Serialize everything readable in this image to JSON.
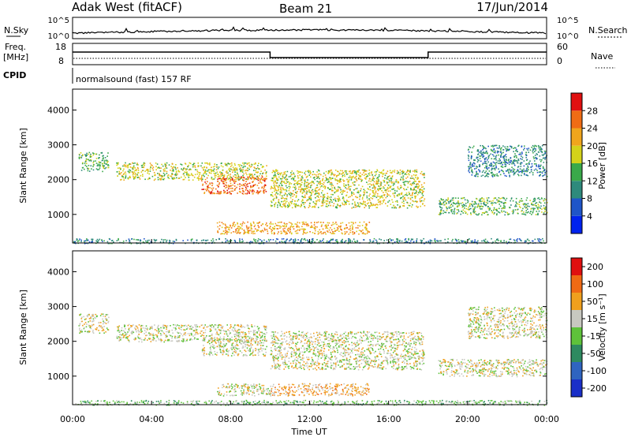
{
  "header": {
    "station": "Adak West (fitACF)",
    "beam": "Beam 21",
    "date": "17/Jun/2014"
  },
  "top_panels": {
    "nsky_label": "N.Sky",
    "nsearch_label": "N.Search",
    "count_ticks": [
      "10^5",
      "10^0"
    ],
    "freq_label_line1": "Freq.",
    "freq_label_line2": "[MHz]",
    "freq_ticks": [
      "18",
      "8"
    ],
    "nave_label": "Nave",
    "nave_ticks": [
      "60",
      "0"
    ],
    "cpid_label": "CPID",
    "cpid_text": "normalsound (fast) 157 RF"
  },
  "chart_data": [
    {
      "type": "heatmap",
      "name": "power",
      "ylabel": "Slant Range [km]",
      "yticks": [
        1000,
        2000,
        3000,
        4000
      ],
      "ylim": [
        180,
        4600
      ],
      "xlim": [
        0,
        24
      ],
      "colorbar": {
        "label": "Power [dB]",
        "ticks": [
          "4",
          "8",
          "12",
          "16",
          "20",
          "24",
          "28"
        ],
        "colors": [
          "#0022ee",
          "#1f55c8",
          "#2e8a7c",
          "#3aa94a",
          "#d4d21a",
          "#f0a51c",
          "#f06c14",
          "#e01010"
        ]
      },
      "bands": [
        {
          "t0": 0.3,
          "t1": 1.8,
          "r0": 2250,
          "r1": 2800,
          "level": 3
        },
        {
          "t0": 2.2,
          "t1": 9.8,
          "r0": 2000,
          "r1": 2500,
          "level": 4
        },
        {
          "t0": 6.5,
          "t1": 9.8,
          "r0": 1600,
          "r1": 2100,
          "level": 6
        },
        {
          "t0": 10.0,
          "t1": 17.8,
          "r0": 1200,
          "r1": 2300,
          "level": 4
        },
        {
          "t0": 7.3,
          "t1": 15.0,
          "r0": 450,
          "r1": 800,
          "level": 5
        },
        {
          "t0": 18.5,
          "t1": 24.0,
          "r0": 1000,
          "r1": 1500,
          "level": 3
        },
        {
          "t0": 20.0,
          "t1": 24.0,
          "r0": 2100,
          "r1": 3000,
          "level": 2
        },
        {
          "t0": 0.0,
          "t1": 24.0,
          "r0": 180,
          "r1": 320,
          "level": 2
        }
      ]
    },
    {
      "type": "heatmap",
      "name": "velocity",
      "ylabel": "Slant Range [km]",
      "yticks": [
        1000,
        2000,
        3000,
        4000
      ],
      "ylim": [
        180,
        4600
      ],
      "xlim": [
        0,
        24
      ],
      "xlabel": "Time UT",
      "xticks": [
        "00:00",
        "04:00",
        "08:00",
        "12:00",
        "16:00",
        "20:00",
        "00:00"
      ],
      "colorbar": {
        "label": "Velocity [m s⁻¹]",
        "ticks": [
          "200",
          "100",
          "50",
          "15",
          "-15",
          "-50",
          "-100",
          "-200"
        ],
        "colors": [
          "#1a2fc8",
          "#2f64c0",
          "#2e8a60",
          "#5ec23a",
          "#c8c8c0",
          "#f0a01e",
          "#f06a14",
          "#e01010"
        ]
      },
      "bands": [
        {
          "t0": 0.3,
          "t1": 1.8,
          "r0": 2250,
          "r1": 2800,
          "level": 4
        },
        {
          "t0": 2.2,
          "t1": 9.8,
          "r0": 2000,
          "r1": 2500,
          "level": 4
        },
        {
          "t0": 6.5,
          "t1": 9.8,
          "r0": 1600,
          "r1": 2100,
          "level": 4
        },
        {
          "t0": 10.0,
          "t1": 17.8,
          "r0": 1200,
          "r1": 2300,
          "level": 4
        },
        {
          "t0": 7.3,
          "t1": 10.0,
          "r0": 450,
          "r1": 800,
          "level": 4
        },
        {
          "t0": 10.0,
          "t1": 15.0,
          "r0": 450,
          "r1": 800,
          "level": 5
        },
        {
          "t0": 18.5,
          "t1": 24.0,
          "r0": 1000,
          "r1": 1500,
          "level": 4
        },
        {
          "t0": 20.0,
          "t1": 24.0,
          "r0": 2100,
          "r1": 3000,
          "level": 4
        },
        {
          "t0": 0.0,
          "t1": 24.0,
          "r0": 180,
          "r1": 320,
          "level": 3
        }
      ]
    }
  ]
}
